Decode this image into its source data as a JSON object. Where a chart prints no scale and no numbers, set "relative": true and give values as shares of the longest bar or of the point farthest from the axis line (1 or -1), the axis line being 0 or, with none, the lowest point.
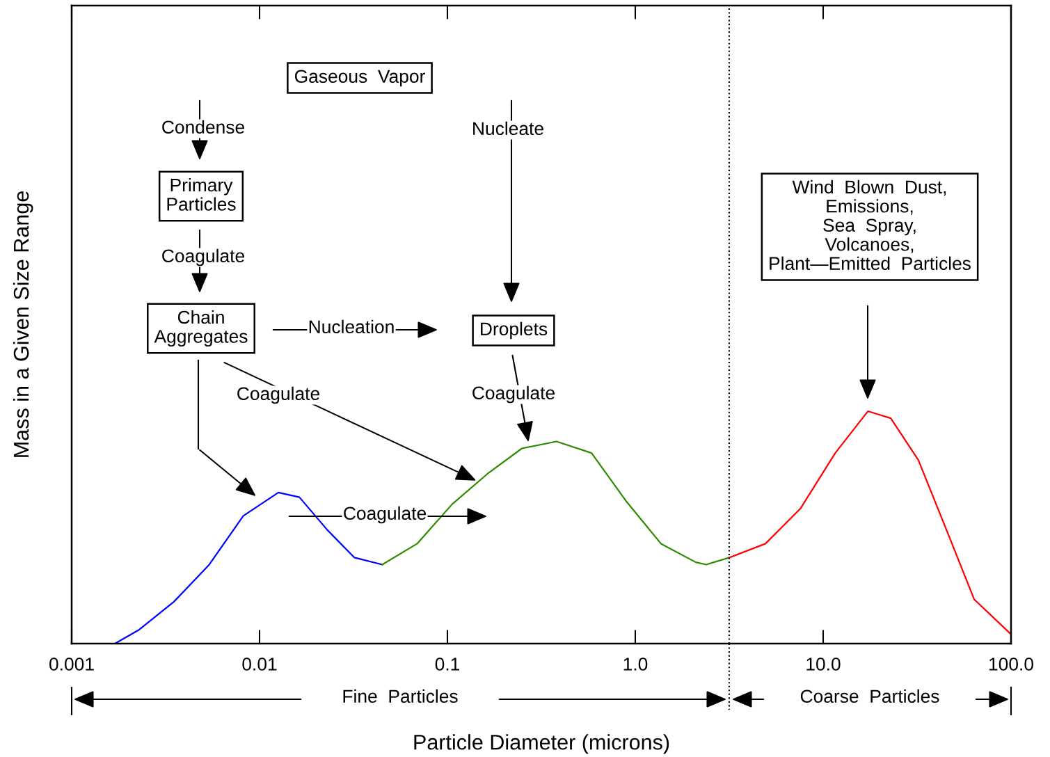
{
  "chart_data": {
    "type": "line",
    "relative": true,
    "xlabel": "Particle Diameter (microns)",
    "ylabel": "Mass in a Given Size Range",
    "log": "x",
    "xlim": [
      0.001,
      100
    ],
    "xticks": [
      {
        "value": 0.001,
        "label": "0.001"
      },
      {
        "value": 0.01,
        "label": "0.01"
      },
      {
        "value": 0.1,
        "label": "0.1"
      },
      {
        "value": 1,
        "label": "1.0"
      },
      {
        "value": 10,
        "label": "10.0"
      },
      {
        "value": 100,
        "label": "100.0"
      }
    ],
    "tick_labels": "x",
    "grid": false,
    "legend": false,
    "marker": "none",
    "line_style": "solid",
    "series": [
      {
        "color": "#0000ff",
        "x": [
          0.0017,
          0.00229,
          0.0035,
          0.0054,
          0.0082,
          0.0126,
          0.0163,
          0.0229,
          0.032,
          0.045
        ],
        "values": [
          0,
          0.06,
          0.18,
          0.34,
          0.55,
          0.65,
          0.63,
          0.49,
          0.37,
          0.34
        ]
      },
      {
        "color": "#2e8b00",
        "x": [
          0.045,
          0.069,
          0.106,
          0.163,
          0.249,
          0.381,
          0.585,
          0.9,
          1.37,
          2.1,
          2.39,
          3.16
        ],
        "values": [
          0.34,
          0.43,
          0.6,
          0.73,
          0.84,
          0.87,
          0.82,
          0.61,
          0.43,
          0.35,
          0.34,
          0.37
        ]
      },
      {
        "color": "#ff0000",
        "x": [
          3.16,
          4.93,
          7.55,
          11.6,
          17.3,
          22.9,
          32.1,
          45.3,
          63.7,
          100
        ],
        "values": [
          0.37,
          0.43,
          0.58,
          0.82,
          1.0,
          0.97,
          0.79,
          0.49,
          0.19,
          0.04
        ]
      }
    ],
    "ref_lines": [
      {
        "axis": "x",
        "value": 3.16,
        "line_style": "dotted",
        "color": "#000000"
      }
    ],
    "annotations": [
      "Gaseous  Vapor",
      "Condense",
      "Nucleate",
      "Primary\nParticles",
      "Coagulate",
      "Chain\nAggregates",
      "Nucleation",
      "Droplets",
      "Coagulate",
      "Coagulate",
      "Coagulate",
      "Wind  Blown  Dust,\nEmissions,\nSea  Spray,\nVolcanoes,\nPlant—Emitted  Particles",
      "Fine  Particles",
      "Coarse  Particles"
    ]
  }
}
